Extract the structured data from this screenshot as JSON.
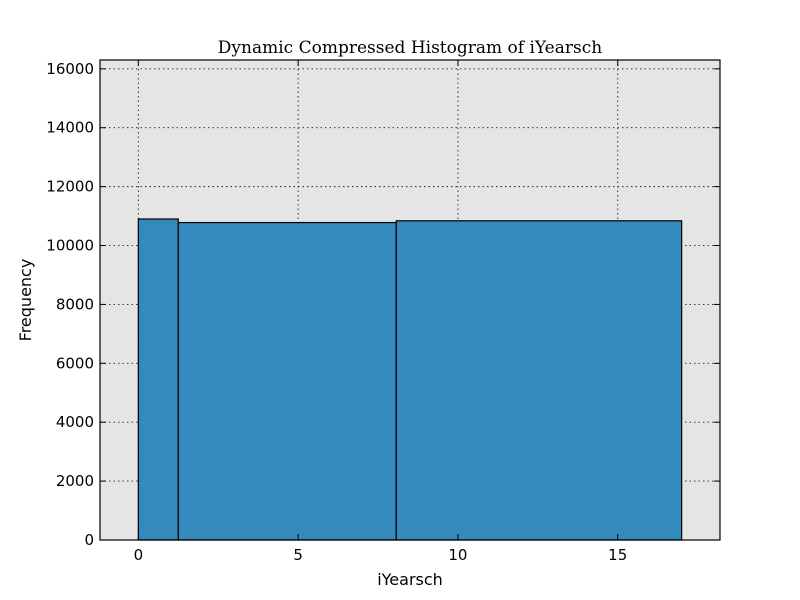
{
  "chart_data": {
    "type": "bar",
    "title": "Dynamic Compressed Histogram of iYearsch",
    "xlabel": "iYearsch",
    "ylabel": "Frequency",
    "xlim": [
      -1.2,
      18.2
    ],
    "ylim": [
      0,
      16300
    ],
    "xticks": [
      0,
      5,
      10,
      15
    ],
    "yticks": [
      0,
      2000,
      4000,
      6000,
      8000,
      10000,
      12000,
      14000,
      16000
    ],
    "grid": true,
    "bins": [
      {
        "x_start": 0,
        "x_end": 1.25,
        "count": 10900
      },
      {
        "x_start": 1.25,
        "x_end": 8.07,
        "count": 10780
      },
      {
        "x_start": 8.07,
        "x_end": 17,
        "count": 10840
      }
    ],
    "colors": {
      "bar": "#348abd",
      "plot_background": "#e5e5e5"
    }
  }
}
